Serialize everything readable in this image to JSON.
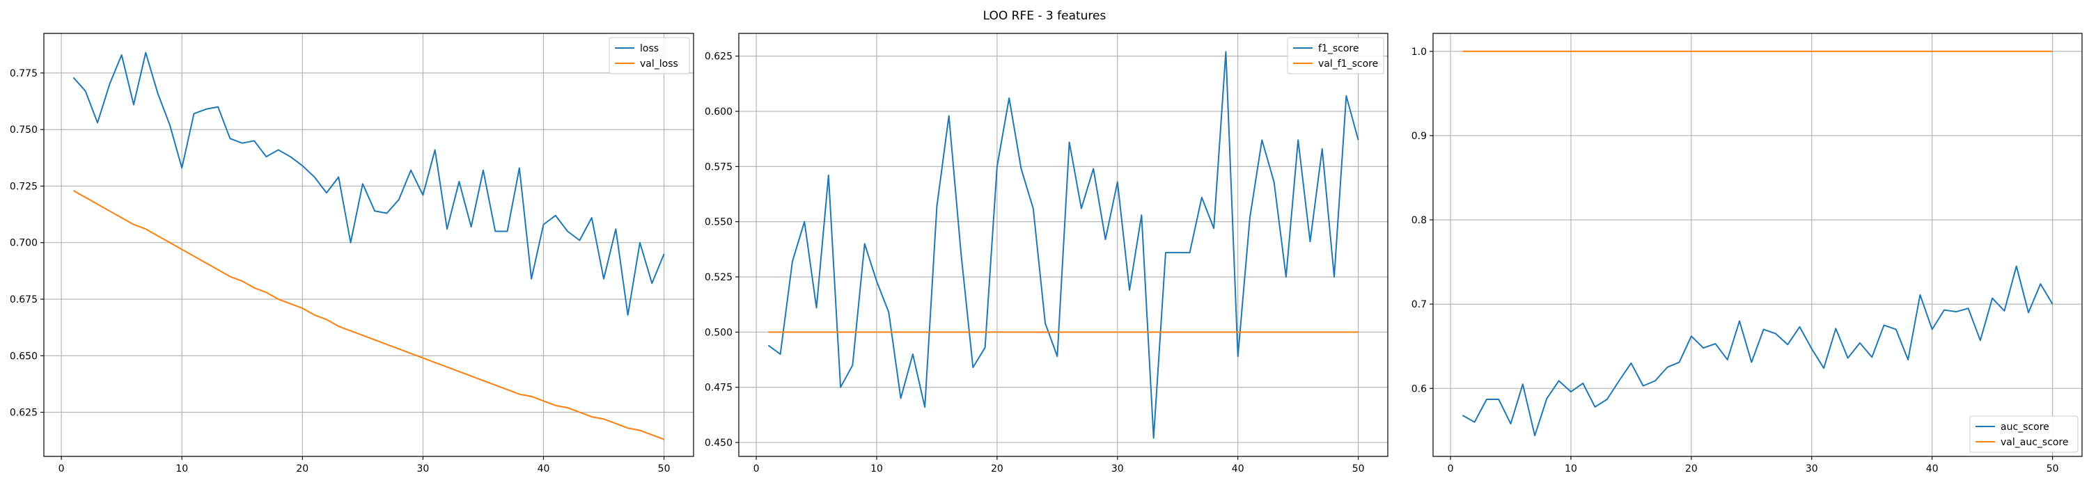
{
  "figure": {
    "title": "LOO RFE - 3 features"
  },
  "chart_data": [
    {
      "type": "line",
      "title": "",
      "xlabel": "",
      "ylabel": "",
      "xlim": [
        -1.45,
        52.45
      ],
      "ylim": [
        0.6055,
        0.7925
      ],
      "xticks": [
        0,
        10,
        20,
        30,
        40,
        50
      ],
      "xtick_labels": [
        "0",
        "10",
        "20",
        "30",
        "40",
        "50"
      ],
      "yticks": [
        0.625,
        0.65,
        0.675,
        0.7,
        0.725,
        0.75,
        0.775
      ],
      "ytick_labels": [
        "0.625",
        "0.650",
        "0.675",
        "0.700",
        "0.725",
        "0.750",
        "0.775"
      ],
      "grid": true,
      "legend_position": "upper-right",
      "x": [
        1,
        2,
        3,
        4,
        5,
        6,
        7,
        8,
        9,
        10,
        11,
        12,
        13,
        14,
        15,
        16,
        17,
        18,
        19,
        20,
        21,
        22,
        23,
        24,
        25,
        26,
        27,
        28,
        29,
        30,
        31,
        32,
        33,
        34,
        35,
        36,
        37,
        38,
        39,
        40,
        41,
        42,
        43,
        44,
        45,
        46,
        47,
        48,
        49,
        50
      ],
      "series": [
        {
          "name": "loss",
          "color": "#1f77b4",
          "values": [
            0.773,
            0.767,
            0.753,
            0.77,
            0.783,
            0.761,
            0.784,
            0.766,
            0.752,
            0.733,
            0.757,
            0.759,
            0.76,
            0.746,
            0.744,
            0.745,
            0.738,
            0.741,
            0.738,
            0.734,
            0.729,
            0.722,
            0.729,
            0.7,
            0.726,
            0.714,
            0.713,
            0.719,
            0.732,
            0.721,
            0.741,
            0.706,
            0.727,
            0.707,
            0.732,
            0.705,
            0.705,
            0.733,
            0.684,
            0.708,
            0.712,
            0.705,
            0.701,
            0.711,
            0.684,
            0.706,
            0.668,
            0.7,
            0.682,
            0.695
          ]
        },
        {
          "name": "val_loss",
          "color": "#ff7f0e",
          "values": [
            0.723,
            0.72,
            0.717,
            0.714,
            0.711,
            0.708,
            0.706,
            0.703,
            0.7,
            0.697,
            0.694,
            0.691,
            0.688,
            0.685,
            0.683,
            0.68,
            0.678,
            0.675,
            0.673,
            0.671,
            0.668,
            0.666,
            0.663,
            0.661,
            0.659,
            0.657,
            0.655,
            0.653,
            0.651,
            0.649,
            0.647,
            0.645,
            0.643,
            0.641,
            0.639,
            0.637,
            0.635,
            0.633,
            0.632,
            0.63,
            0.628,
            0.627,
            0.625,
            0.623,
            0.622,
            0.62,
            0.618,
            0.617,
            0.615,
            0.613
          ]
        }
      ]
    },
    {
      "type": "line",
      "title": "",
      "xlabel": "",
      "ylabel": "",
      "xlim": [
        -1.45,
        52.45
      ],
      "ylim": [
        0.4437,
        0.6353
      ],
      "xticks": [
        0,
        10,
        20,
        30,
        40,
        50
      ],
      "xtick_labels": [
        "0",
        "10",
        "20",
        "30",
        "40",
        "50"
      ],
      "yticks": [
        0.45,
        0.475,
        0.5,
        0.525,
        0.55,
        0.575,
        0.6,
        0.625
      ],
      "ytick_labels": [
        "0.450",
        "0.475",
        "0.500",
        "0.525",
        "0.550",
        "0.575",
        "0.600",
        "0.625"
      ],
      "grid": true,
      "legend_position": "upper-right",
      "x": [
        1,
        2,
        3,
        4,
        5,
        6,
        7,
        8,
        9,
        10,
        11,
        12,
        13,
        14,
        15,
        16,
        17,
        18,
        19,
        20,
        21,
        22,
        23,
        24,
        25,
        26,
        27,
        28,
        29,
        30,
        31,
        32,
        33,
        34,
        35,
        36,
        37,
        38,
        39,
        40,
        41,
        42,
        43,
        44,
        45,
        46,
        47,
        48,
        49,
        50
      ],
      "series": [
        {
          "name": "f1_score",
          "color": "#1f77b4",
          "values": [
            0.494,
            0.49,
            0.532,
            0.55,
            0.511,
            0.571,
            0.475,
            0.485,
            0.54,
            0.523,
            0.509,
            0.47,
            0.49,
            0.466,
            0.557,
            0.598,
            0.536,
            0.484,
            0.493,
            0.575,
            0.606,
            0.574,
            0.556,
            0.504,
            0.489,
            0.586,
            0.556,
            0.574,
            0.542,
            0.568,
            0.519,
            0.553,
            0.452,
            0.536,
            0.536,
            0.536,
            0.561,
            0.547,
            0.627,
            0.489,
            0.552,
            0.587,
            0.568,
            0.525,
            0.587,
            0.541,
            0.583,
            0.525,
            0.607,
            0.587
          ]
        },
        {
          "name": "val_f1_score",
          "color": "#ff7f0e",
          "values": [
            0.5,
            0.5,
            0.5,
            0.5,
            0.5,
            0.5,
            0.5,
            0.5,
            0.5,
            0.5,
            0.5,
            0.5,
            0.5,
            0.5,
            0.5,
            0.5,
            0.5,
            0.5,
            0.5,
            0.5,
            0.5,
            0.5,
            0.5,
            0.5,
            0.5,
            0.5,
            0.5,
            0.5,
            0.5,
            0.5,
            0.5,
            0.5,
            0.5,
            0.5,
            0.5,
            0.5,
            0.5,
            0.5,
            0.5,
            0.5,
            0.5,
            0.5,
            0.5,
            0.5,
            0.5,
            0.5,
            0.5,
            0.5,
            0.5,
            0.5
          ]
        }
      ]
    },
    {
      "type": "line",
      "title": "",
      "xlabel": "",
      "ylabel": "",
      "xlim": [
        -1.45,
        52.45
      ],
      "ylim": [
        0.5193,
        1.0213
      ],
      "xticks": [
        0,
        10,
        20,
        30,
        40,
        50
      ],
      "xtick_labels": [
        "0",
        "10",
        "20",
        "30",
        "40",
        "50"
      ],
      "yticks": [
        0.6,
        0.7,
        0.8,
        0.9,
        1.0
      ],
      "ytick_labels": [
        "0.6",
        "0.7",
        "0.8",
        "0.9",
        "1.0"
      ],
      "grid": true,
      "legend_position": "lower-right",
      "x": [
        1,
        2,
        3,
        4,
        5,
        6,
        7,
        8,
        9,
        10,
        11,
        12,
        13,
        14,
        15,
        16,
        17,
        18,
        19,
        20,
        21,
        22,
        23,
        24,
        25,
        26,
        27,
        28,
        29,
        30,
        31,
        32,
        33,
        34,
        35,
        36,
        37,
        38,
        39,
        40,
        41,
        42,
        43,
        44,
        45,
        46,
        47,
        48,
        49,
        50
      ],
      "series": [
        {
          "name": "auc_score",
          "color": "#1f77b4",
          "values": [
            0.568,
            0.56,
            0.587,
            0.587,
            0.558,
            0.605,
            0.544,
            0.588,
            0.609,
            0.596,
            0.606,
            0.578,
            0.587,
            0.609,
            0.63,
            0.603,
            0.609,
            0.625,
            0.631,
            0.662,
            0.648,
            0.653,
            0.634,
            0.68,
            0.631,
            0.67,
            0.665,
            0.652,
            0.673,
            0.647,
            0.624,
            0.671,
            0.636,
            0.654,
            0.637,
            0.675,
            0.67,
            0.634,
            0.711,
            0.67,
            0.693,
            0.691,
            0.695,
            0.657,
            0.707,
            0.692,
            0.745,
            0.69,
            0.724,
            0.7
          ]
        },
        {
          "name": "val_auc_score",
          "color": "#ff7f0e",
          "values": [
            1.0,
            1.0,
            1.0,
            1.0,
            1.0,
            1.0,
            1.0,
            1.0,
            1.0,
            1.0,
            1.0,
            1.0,
            1.0,
            1.0,
            1.0,
            1.0,
            1.0,
            1.0,
            1.0,
            1.0,
            1.0,
            1.0,
            1.0,
            1.0,
            1.0,
            1.0,
            1.0,
            1.0,
            1.0,
            1.0,
            1.0,
            1.0,
            1.0,
            1.0,
            1.0,
            1.0,
            1.0,
            1.0,
            1.0,
            1.0,
            1.0,
            1.0,
            1.0,
            1.0,
            1.0,
            1.0,
            1.0,
            1.0,
            1.0,
            1.0
          ]
        }
      ]
    }
  ]
}
